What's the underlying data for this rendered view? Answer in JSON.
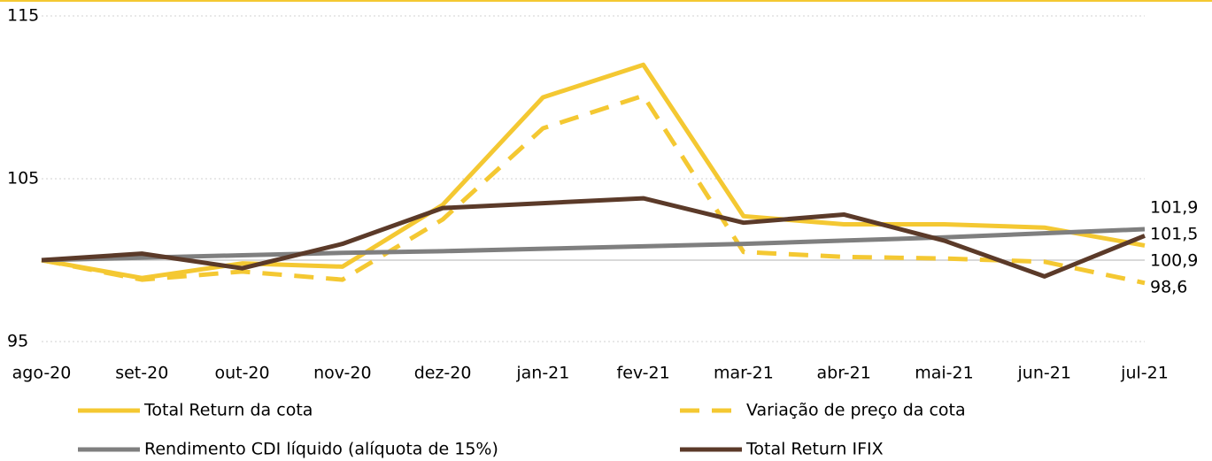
{
  "chart_data": {
    "type": "line",
    "categories": [
      "ago-20",
      "set-20",
      "out-20",
      "nov-20",
      "dez-20",
      "jan-21",
      "fev-21",
      "mar-21",
      "abr-21",
      "mai-21",
      "jun-21",
      "jul-21"
    ],
    "series": [
      {
        "name": "Total Return da cota",
        "color": "#f4c832",
        "dash": false,
        "values": [
          100,
          98.9,
          99.8,
          99.6,
          103.4,
          110.0,
          112.0,
          102.7,
          102.2,
          102.2,
          102.0,
          100.9
        ],
        "value_labels": [
          null,
          null,
          null,
          null,
          null,
          null,
          null,
          null,
          null,
          null,
          null,
          "100,9"
        ]
      },
      {
        "name": "Variação de preço da cota",
        "color": "#f4c832",
        "dash": true,
        "values": [
          100,
          98.8,
          99.3,
          98.8,
          102.5,
          108.1,
          110.1,
          100.5,
          100.2,
          100.1,
          99.9,
          98.6
        ],
        "value_labels": [
          null,
          null,
          null,
          null,
          null,
          null,
          null,
          null,
          null,
          null,
          null,
          "98,6"
        ]
      },
      {
        "name": "Rendimento CDI líquido (alíquota de 15%)",
        "color": "#7f7f7f",
        "dash": false,
        "values": [
          100,
          100.15,
          100.3,
          100.45,
          100.55,
          100.7,
          100.85,
          101.0,
          101.2,
          101.4,
          101.65,
          101.9
        ],
        "value_labels": [
          null,
          null,
          null,
          null,
          null,
          null,
          null,
          null,
          null,
          null,
          null,
          "101,9"
        ]
      },
      {
        "name": "Total Return IFIX",
        "color": "#5b3a29",
        "dash": false,
        "values": [
          100,
          100.4,
          99.5,
          101.0,
          103.2,
          103.5,
          103.8,
          102.3,
          102.8,
          101.2,
          99.0,
          101.5
        ],
        "value_labels": [
          null,
          null,
          null,
          null,
          null,
          null,
          null,
          null,
          null,
          null,
          null,
          "101,5"
        ]
      }
    ],
    "ylim": [
      95,
      115
    ],
    "yticks": [
      95,
      105,
      115
    ],
    "grid": true,
    "baseline": 100,
    "legend": "bottom"
  }
}
